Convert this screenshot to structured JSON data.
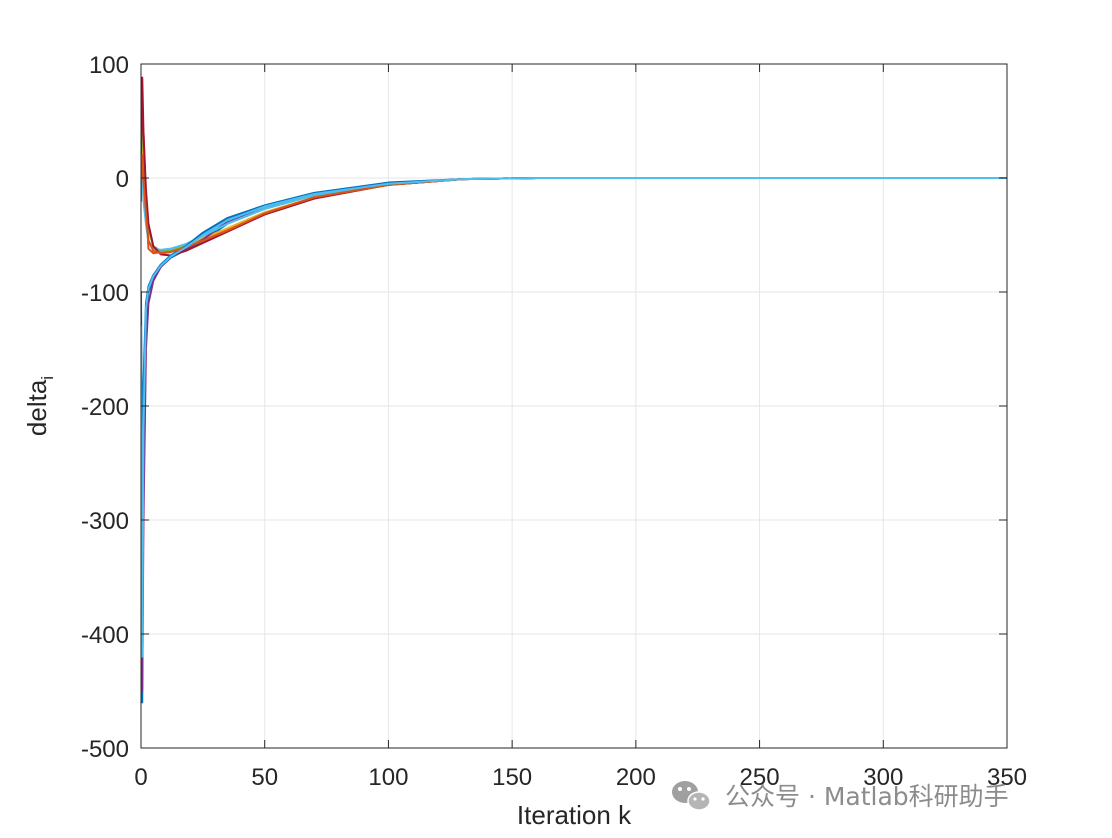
{
  "chart_data": {
    "type": "line",
    "title": "",
    "xlabel": "Iteration k",
    "ylabel_base": "delta",
    "ylabel_sub": "i",
    "xlim": [
      0,
      350
    ],
    "ylim": [
      -500,
      100
    ],
    "xticks": [
      0,
      50,
      100,
      150,
      200,
      250,
      300,
      350
    ],
    "yticks": [
      100,
      0,
      -100,
      -200,
      -300,
      -400,
      -500
    ],
    "xtick_labels": [
      "0",
      "50",
      "100",
      "150",
      "200",
      "250",
      "300",
      "350"
    ],
    "ytick_labels": [
      "100",
      "0",
      "-100",
      "-200",
      "-300",
      "-400",
      "-500"
    ],
    "grid": true,
    "series": [
      {
        "color": "#0072bd",
        "x": [
          0,
          0.5,
          1,
          2,
          3,
          5,
          8,
          12,
          18,
          25,
          35,
          50,
          70,
          100,
          130,
          160,
          200,
          350
        ],
        "y": [
          -150,
          -460,
          -240,
          -120,
          -100,
          -88,
          -78,
          -70,
          -63,
          -55,
          -40,
          -27,
          -15,
          -5,
          -1,
          0,
          0,
          0
        ]
      },
      {
        "color": "#d95319",
        "x": [
          0,
          0.5,
          1,
          2,
          3,
          5,
          8,
          12,
          18,
          25,
          35,
          50,
          70,
          100,
          130,
          160,
          200,
          350
        ],
        "y": [
          -20,
          30,
          40,
          -20,
          -62,
          -66,
          -65,
          -63,
          -60,
          -54,
          -45,
          -31,
          -17,
          -6,
          -1,
          0,
          0,
          0
        ]
      },
      {
        "color": "#edb120",
        "x": [
          0,
          0.5,
          1,
          2,
          3,
          5,
          8,
          12,
          18,
          25,
          35,
          50,
          70,
          100,
          130,
          160,
          200,
          350
        ],
        "y": [
          0,
          60,
          20,
          -40,
          -55,
          -62,
          -64,
          -63,
          -59,
          -53,
          -44,
          -30,
          -17,
          -6,
          -1,
          0,
          0,
          0
        ]
      },
      {
        "color": "#7e2f8e",
        "x": [
          0,
          0.5,
          1,
          2,
          3,
          5,
          8,
          12,
          18,
          25,
          35,
          50,
          70,
          100,
          130,
          160,
          200,
          350
        ],
        "y": [
          -120,
          -450,
          -300,
          -150,
          -110,
          -90,
          -78,
          -69,
          -62,
          -54,
          -38,
          -25,
          -14,
          -5,
          -1,
          0,
          0,
          0
        ]
      },
      {
        "color": "#77ac30",
        "x": [
          0,
          0.5,
          1,
          2,
          3,
          5,
          8,
          12,
          18,
          25,
          35,
          50,
          70,
          100,
          130,
          160,
          200,
          350
        ],
        "y": [
          10,
          70,
          30,
          -20,
          -45,
          -60,
          -64,
          -64,
          -60,
          -55,
          -46,
          -32,
          -18,
          -6,
          -1,
          0,
          0,
          0
        ]
      },
      {
        "color": "#4dbeee",
        "x": [
          0,
          0.5,
          1,
          2,
          3,
          5,
          8,
          12,
          18,
          25,
          35,
          50,
          70,
          100,
          130,
          160,
          200,
          350
        ],
        "y": [
          -10,
          10,
          -20,
          -40,
          -55,
          -62,
          -63,
          -62,
          -58,
          -51,
          -40,
          -27,
          -15,
          -5,
          -1,
          0,
          0,
          0
        ]
      },
      {
        "color": "#a2142f",
        "x": [
          0,
          0.5,
          1,
          2,
          3,
          5,
          8,
          12,
          18,
          25,
          35,
          50,
          70,
          100,
          130,
          160,
          200,
          350
        ],
        "y": [
          20,
          88,
          40,
          -10,
          -40,
          -60,
          -67,
          -68,
          -64,
          -57,
          -47,
          -32,
          -18,
          -6,
          -1,
          0,
          0,
          0
        ]
      },
      {
        "color": "#0072bd",
        "x": [
          0,
          0.5,
          1,
          2,
          3,
          5,
          8,
          12,
          18,
          25,
          35,
          50,
          70,
          100,
          130,
          160,
          200,
          350
        ],
        "y": [
          -100,
          -300,
          -180,
          -110,
          -95,
          -85,
          -76,
          -68,
          -60,
          -48,
          -35,
          -24,
          -13,
          -4,
          -1,
          0,
          0,
          0
        ]
      },
      {
        "color": "#d95319",
        "x": [
          0,
          0.5,
          1,
          2,
          3,
          5,
          8,
          12,
          18,
          25,
          35,
          50,
          70,
          100,
          130,
          160,
          200,
          350
        ],
        "y": [
          -10,
          20,
          0,
          -30,
          -55,
          -64,
          -66,
          -65,
          -61,
          -55,
          -46,
          -31,
          -17,
          -6,
          -1,
          0,
          0,
          0
        ]
      },
      {
        "color": "#4dbeee",
        "x": [
          0,
          0.5,
          1,
          2,
          3,
          5,
          8,
          12,
          18,
          25,
          35,
          50,
          70,
          100,
          130,
          160,
          200,
          350
        ],
        "y": [
          -130,
          -420,
          -220,
          -115,
          -97,
          -86,
          -77,
          -69,
          -61,
          -50,
          -37,
          -25,
          -14,
          -5,
          -1,
          0,
          0,
          0
        ]
      }
    ]
  },
  "watermark": {
    "icon": "wechat-icon",
    "text": "公众号 · Matlab科研助手"
  }
}
